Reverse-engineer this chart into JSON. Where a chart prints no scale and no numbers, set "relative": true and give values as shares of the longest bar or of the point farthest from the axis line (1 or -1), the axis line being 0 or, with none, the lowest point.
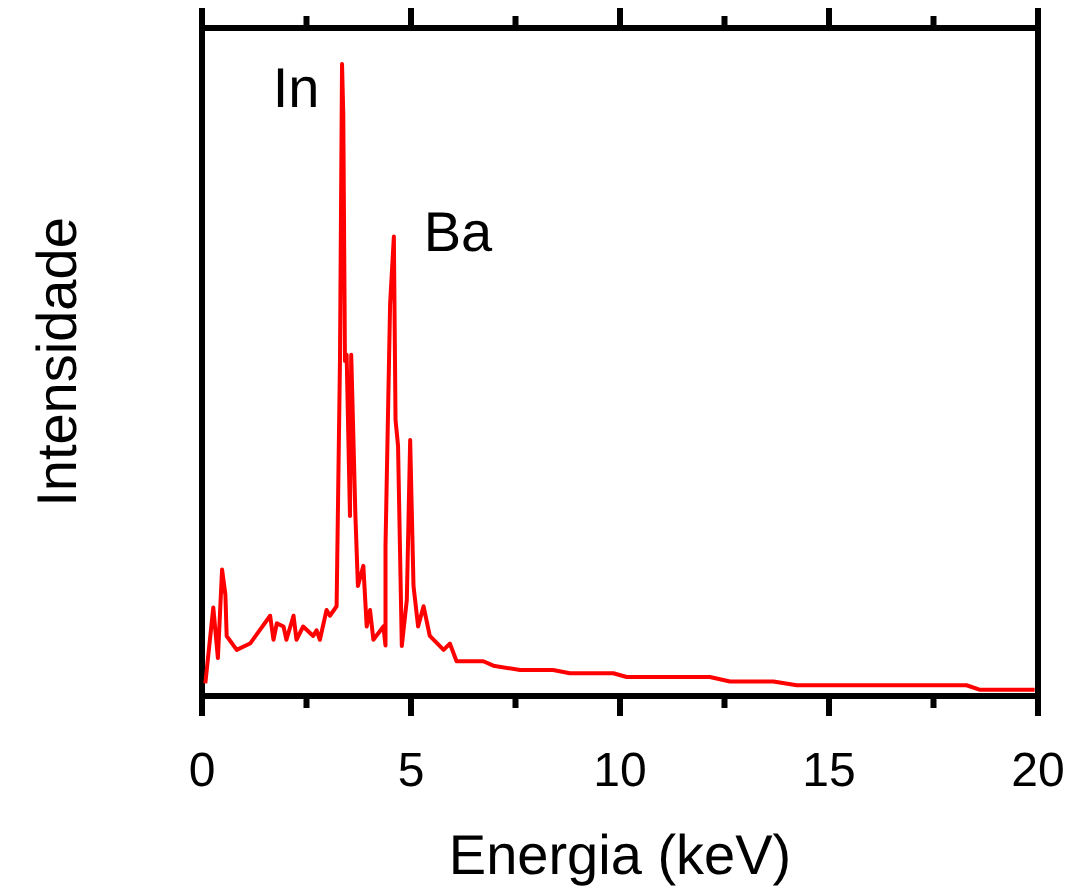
{
  "chart_data": {
    "type": "line",
    "xlabel": "Energia (keV)",
    "ylabel": "Intensidade",
    "relative": true,
    "xlim": [
      0,
      20
    ],
    "xticks": [
      0,
      {
        "value": 2.5,
        "label": null
      },
      5,
      {
        "value": 7.5,
        "label": null
      },
      10,
      {
        "value": 12.5,
        "label": null
      },
      15,
      {
        "value": 17.5,
        "label": null
      },
      20
    ],
    "grid": false,
    "marker": "none",
    "line_style": "solid",
    "annotations": [
      "In",
      "Ba"
    ],
    "series": [
      {
        "color": "#ff0000",
        "x": [
          0.08,
          0.27,
          0.38,
          0.48,
          0.56,
          0.59,
          0.83,
          1.15,
          1.63,
          1.71,
          1.79,
          1.95,
          2.02,
          2.19,
          2.26,
          2.42,
          2.66,
          2.74,
          2.82,
          2.98,
          3.06,
          3.22,
          3.3,
          3.35,
          3.38,
          3.42,
          3.46,
          3.54,
          3.57,
          3.67,
          3.73,
          3.86,
          3.94,
          4.02,
          4.1,
          4.34,
          4.39,
          4.39,
          4.5,
          4.59,
          4.63,
          4.69,
          4.78,
          4.9,
          4.98,
          5.06,
          5.17,
          5.3,
          5.45,
          5.78,
          5.93,
          6.09,
          6.73,
          6.97,
          7.61,
          8.4,
          8.8,
          9.84,
          10.16,
          12.15,
          12.63,
          13.67,
          14.23,
          18.29,
          18.6,
          19.92
        ],
        "values": [
          0.02,
          0.14,
          0.06,
          0.2,
          0.16,
          0.095,
          0.073,
          0.083,
          0.127,
          0.089,
          0.115,
          0.11,
          0.089,
          0.127,
          0.089,
          0.11,
          0.095,
          0.104,
          0.089,
          0.136,
          0.127,
          0.142,
          0.526,
          1.0,
          0.92,
          0.53,
          0.54,
          0.285,
          0.54,
          0.285,
          0.174,
          0.206,
          0.11,
          0.136,
          0.089,
          0.11,
          0.08,
          0.237,
          0.62,
          0.727,
          0.437,
          0.396,
          0.079,
          0.152,
          0.405,
          0.174,
          0.11,
          0.142,
          0.095,
          0.073,
          0.083,
          0.055,
          0.055,
          0.048,
          0.041,
          0.041,
          0.036,
          0.036,
          0.03,
          0.03,
          0.023,
          0.023,
          0.017,
          0.017,
          0.01,
          0.01
        ]
      }
    ]
  }
}
